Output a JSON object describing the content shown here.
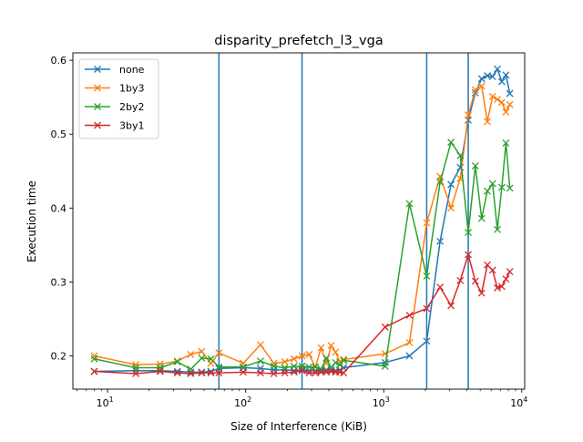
{
  "chart_data": {
    "type": "line",
    "title": "disparity_prefetch_l3_vga",
    "xlabel": "Size of Interference (KiB)",
    "ylabel": "Execution time",
    "xscale": "log",
    "xlim": [
      5.6,
      10500
    ],
    "ylim": [
      0.155,
      0.61
    ],
    "grid": false,
    "legend_position": "top-left",
    "x_ticks": [
      {
        "value": 10,
        "base": "10",
        "exp": "1"
      },
      {
        "value": 100,
        "base": "10",
        "exp": "2"
      },
      {
        "value": 1000,
        "base": "10",
        "exp": "3"
      },
      {
        "value": 10000,
        "base": "10",
        "exp": "4"
      }
    ],
    "y_ticks": [
      {
        "value": 0.2,
        "label": "0.2"
      },
      {
        "value": 0.3,
        "label": "0.3"
      },
      {
        "value": 0.4,
        "label": "0.4"
      },
      {
        "value": 0.5,
        "label": "0.5"
      },
      {
        "value": 0.6,
        "label": "0.6"
      }
    ],
    "vlines": [
      64,
      256,
      2048,
      4096
    ],
    "vline_color": "#1f77b4",
    "x": [
      8,
      16,
      24,
      32,
      40,
      48,
      56,
      64,
      96,
      128,
      160,
      192,
      224,
      256,
      288,
      320,
      352,
      384,
      416,
      448,
      480,
      512,
      1024,
      1536,
      2048,
      2560,
      3072,
      3584,
      4096,
      4608,
      5120,
      5632,
      6144,
      6656,
      7168,
      7680,
      8192
    ],
    "series": [
      {
        "name": "none",
        "color": "#1f77b4",
        "values": [
          0.179,
          0.18,
          0.18,
          0.179,
          0.178,
          0.178,
          0.179,
          0.183,
          0.184,
          0.183,
          0.181,
          0.181,
          0.18,
          0.181,
          0.18,
          0.18,
          0.18,
          0.181,
          0.181,
          0.18,
          0.181,
          0.184,
          0.191,
          0.2,
          0.22,
          0.355,
          0.432,
          0.455,
          0.519,
          0.556,
          0.575,
          0.579,
          0.578,
          0.588,
          0.571,
          0.58,
          0.555
        ]
      },
      {
        "name": "1by3",
        "color": "#ff7f0e",
        "values": [
          0.2,
          0.188,
          0.189,
          0.193,
          0.202,
          0.206,
          0.19,
          0.204,
          0.19,
          0.215,
          0.19,
          0.192,
          0.196,
          0.2,
          0.202,
          0.185,
          0.211,
          0.19,
          0.214,
          0.205,
          0.192,
          0.195,
          0.203,
          0.218,
          0.38,
          0.443,
          0.4,
          0.44,
          0.526,
          0.56,
          0.565,
          0.517,
          0.551,
          0.547,
          0.543,
          0.53,
          0.54
        ]
      },
      {
        "name": "2by2",
        "color": "#2ca02c",
        "values": [
          0.196,
          0.184,
          0.184,
          0.192,
          0.182,
          0.197,
          0.196,
          0.185,
          0.185,
          0.193,
          0.186,
          0.184,
          0.186,
          0.186,
          0.185,
          0.185,
          0.182,
          0.197,
          0.184,
          0.191,
          0.188,
          0.194,
          0.186,
          0.406,
          0.308,
          0.435,
          0.489,
          0.471,
          0.367,
          0.457,
          0.386,
          0.423,
          0.433,
          0.371,
          0.428,
          0.488,
          0.427
        ]
      },
      {
        "name": "3by1",
        "color": "#d62728",
        "values": [
          0.179,
          0.176,
          0.179,
          0.177,
          0.176,
          0.177,
          0.177,
          0.177,
          0.178,
          0.177,
          0.176,
          0.177,
          0.178,
          0.18,
          0.177,
          0.177,
          0.178,
          0.178,
          0.179,
          0.178,
          0.178,
          0.177,
          0.239,
          0.255,
          0.264,
          0.293,
          0.268,
          0.302,
          0.337,
          0.301,
          0.285,
          0.323,
          0.316,
          0.292,
          0.294,
          0.304,
          0.314
        ]
      }
    ]
  }
}
